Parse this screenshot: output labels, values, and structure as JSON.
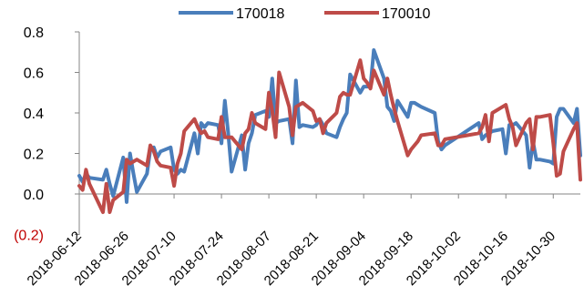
{
  "chart_data": {
    "type": "line",
    "title": "",
    "xlabel": "",
    "ylabel": "",
    "x_tick_labels": [
      "2018-06-12",
      "2018-06-26",
      "2018-07-10",
      "2018-07-24",
      "2018-08-07",
      "2018-08-21",
      "2018-09-04",
      "2018-09-18",
      "2018-10-02",
      "2018-10-16",
      "2018-10-30"
    ],
    "y_tick_labels": [
      "(0.2)",
      "0.0",
      "0.2",
      "0.4",
      "0.6",
      "0.8"
    ],
    "y_ticks": [
      -0.2,
      0.0,
      0.2,
      0.4,
      0.6,
      0.8
    ],
    "ylim": [
      -0.2,
      0.8
    ],
    "xlim": [
      "2018-06-12",
      "2018-11-07"
    ],
    "grid": false,
    "legend_position": "top",
    "series": [
      {
        "name": "170018",
        "color": "#4a7ebb",
        "points": [
          [
            "2018-06-12",
            0.09
          ],
          [
            "2018-06-13",
            0.06
          ],
          [
            "2018-06-14",
            0.1
          ],
          [
            "2018-06-15",
            0.08
          ],
          [
            "2018-06-19",
            0.07
          ],
          [
            "2018-06-20",
            0.12
          ],
          [
            "2018-06-21",
            0.05
          ],
          [
            "2018-06-22",
            -0.01
          ],
          [
            "2018-06-25",
            0.18
          ],
          [
            "2018-06-26",
            -0.04
          ],
          [
            "2018-06-27",
            0.2
          ],
          [
            "2018-06-28",
            0.1
          ],
          [
            "2018-06-29",
            0.01
          ],
          [
            "2018-07-02",
            0.1
          ],
          [
            "2018-07-03",
            0.22
          ],
          [
            "2018-07-04",
            0.23
          ],
          [
            "2018-07-05",
            0.18
          ],
          [
            "2018-07-06",
            0.21
          ],
          [
            "2018-07-09",
            0.23
          ],
          [
            "2018-07-10",
            0.12
          ],
          [
            "2018-07-11",
            0.1
          ],
          [
            "2018-07-12",
            0.12
          ],
          [
            "2018-07-13",
            0.11
          ],
          [
            "2018-07-16",
            0.3
          ],
          [
            "2018-07-17",
            0.2
          ],
          [
            "2018-07-18",
            0.35
          ],
          [
            "2018-07-19",
            0.33
          ],
          [
            "2018-07-20",
            0.35
          ],
          [
            "2018-07-23",
            0.34
          ],
          [
            "2018-07-24",
            0.25
          ],
          [
            "2018-07-25",
            0.46
          ],
          [
            "2018-07-26",
            0.3
          ],
          [
            "2018-07-27",
            0.11
          ],
          [
            "2018-07-30",
            0.29
          ],
          [
            "2018-07-31",
            0.12
          ],
          [
            "2018-08-01",
            0.25
          ],
          [
            "2018-08-02",
            0.3
          ],
          [
            "2018-08-03",
            0.39
          ],
          [
            "2018-08-06",
            0.41
          ],
          [
            "2018-08-07",
            0.38
          ],
          [
            "2018-08-08",
            0.57
          ],
          [
            "2018-08-09",
            0.35
          ],
          [
            "2018-08-10",
            0.36
          ],
          [
            "2018-08-13",
            0.37
          ],
          [
            "2018-08-14",
            0.25
          ],
          [
            "2018-08-15",
            0.56
          ],
          [
            "2018-08-16",
            0.33
          ],
          [
            "2018-08-17",
            0.34
          ],
          [
            "2018-08-20",
            0.33
          ],
          [
            "2018-08-21",
            0.34
          ],
          [
            "2018-08-22",
            0.37
          ],
          [
            "2018-08-23",
            0.34
          ],
          [
            "2018-08-24",
            0.3
          ],
          [
            "2018-08-27",
            0.28
          ],
          [
            "2018-08-28",
            0.33
          ],
          [
            "2018-08-29",
            0.37
          ],
          [
            "2018-08-30",
            0.4
          ],
          [
            "2018-08-31",
            0.59
          ],
          [
            "2018-09-03",
            0.5
          ],
          [
            "2018-09-04",
            0.53
          ],
          [
            "2018-09-05",
            0.53
          ],
          [
            "2018-09-06",
            0.53
          ],
          [
            "2018-09-07",
            0.71
          ],
          [
            "2018-09-10",
            0.57
          ],
          [
            "2018-09-11",
            0.43
          ],
          [
            "2018-09-12",
            0.41
          ],
          [
            "2018-09-13",
            0.36
          ],
          [
            "2018-09-14",
            0.46
          ],
          [
            "2018-09-17",
            0.38
          ],
          [
            "2018-09-18",
            0.45
          ],
          [
            "2018-09-19",
            0.45
          ],
          [
            "2018-09-20",
            0.44
          ],
          [
            "2018-09-21",
            0.43
          ],
          [
            "2018-09-25",
            0.4
          ],
          [
            "2018-09-26",
            0.26
          ],
          [
            "2018-09-27",
            0.22
          ],
          [
            "2018-09-28",
            0.24
          ],
          [
            "2018-10-08",
            0.35
          ],
          [
            "2018-10-09",
            0.27
          ],
          [
            "2018-10-10",
            0.29
          ],
          [
            "2018-10-11",
            0.3
          ],
          [
            "2018-10-12",
            0.31
          ],
          [
            "2018-10-15",
            0.32
          ],
          [
            "2018-10-16",
            0.2
          ],
          [
            "2018-10-17",
            0.34
          ],
          [
            "2018-10-18",
            0.34
          ],
          [
            "2018-10-19",
            0.35
          ],
          [
            "2018-10-22",
            0.29
          ],
          [
            "2018-10-23",
            0.13
          ],
          [
            "2018-10-24",
            0.26
          ],
          [
            "2018-10-25",
            0.17
          ],
          [
            "2018-10-26",
            0.17
          ],
          [
            "2018-10-29",
            0.16
          ],
          [
            "2018-10-30",
            0.15
          ],
          [
            "2018-10-31",
            0.38
          ],
          [
            "2018-11-01",
            0.42
          ],
          [
            "2018-11-02",
            0.42
          ],
          [
            "2018-11-05",
            0.35
          ],
          [
            "2018-11-06",
            0.42
          ],
          [
            "2018-11-07",
            0.19
          ]
        ]
      },
      {
        "name": "170010",
        "color": "#be4b48",
        "points": [
          [
            "2018-06-12",
            0.04
          ],
          [
            "2018-06-13",
            0.02
          ],
          [
            "2018-06-14",
            0.12
          ],
          [
            "2018-06-15",
            0.05
          ],
          [
            "2018-06-19",
            -0.09
          ],
          [
            "2018-06-20",
            0.05
          ],
          [
            "2018-06-21",
            -0.09
          ],
          [
            "2018-06-22",
            -0.03
          ],
          [
            "2018-06-25",
            0.01
          ],
          [
            "2018-06-26",
            0.17
          ],
          [
            "2018-06-27",
            0.15
          ],
          [
            "2018-06-28",
            0.16
          ],
          [
            "2018-06-29",
            0.17
          ],
          [
            "2018-07-02",
            0.14
          ],
          [
            "2018-07-03",
            0.24
          ],
          [
            "2018-07-04",
            0.21
          ],
          [
            "2018-07-05",
            0.16
          ],
          [
            "2018-07-06",
            0.14
          ],
          [
            "2018-07-09",
            0.13
          ],
          [
            "2018-07-10",
            0.04
          ],
          [
            "2018-07-11",
            0.15
          ],
          [
            "2018-07-12",
            0.2
          ],
          [
            "2018-07-13",
            0.31
          ],
          [
            "2018-07-16",
            0.37
          ],
          [
            "2018-07-17",
            0.33
          ],
          [
            "2018-07-18",
            0.3
          ],
          [
            "2018-07-19",
            0.31
          ],
          [
            "2018-07-20",
            0.28
          ],
          [
            "2018-07-23",
            0.27
          ],
          [
            "2018-07-24",
            0.38
          ],
          [
            "2018-07-25",
            0.28
          ],
          [
            "2018-07-26",
            0.28
          ],
          [
            "2018-07-27",
            0.28
          ],
          [
            "2018-07-30",
            0.22
          ],
          [
            "2018-07-31",
            0.3
          ],
          [
            "2018-08-01",
            0.32
          ],
          [
            "2018-08-02",
            0.4
          ],
          [
            "2018-08-03",
            0.35
          ],
          [
            "2018-08-06",
            0.32
          ],
          [
            "2018-08-07",
            0.5
          ],
          [
            "2018-08-08",
            0.41
          ],
          [
            "2018-08-09",
            0.28
          ],
          [
            "2018-08-10",
            0.6
          ],
          [
            "2018-08-13",
            0.43
          ],
          [
            "2018-08-14",
            0.29
          ],
          [
            "2018-08-15",
            0.43
          ],
          [
            "2018-08-16",
            0.44
          ],
          [
            "2018-08-17",
            0.45
          ],
          [
            "2018-08-20",
            0.41
          ],
          [
            "2018-08-21",
            0.36
          ],
          [
            "2018-08-22",
            0.37
          ],
          [
            "2018-08-23",
            0.3
          ],
          [
            "2018-08-24",
            0.35
          ],
          [
            "2018-08-27",
            0.4
          ],
          [
            "2018-08-28",
            0.48
          ],
          [
            "2018-08-29",
            0.5
          ],
          [
            "2018-08-30",
            0.49
          ],
          [
            "2018-08-31",
            0.49
          ],
          [
            "2018-09-03",
            0.66
          ],
          [
            "2018-09-04",
            0.57
          ],
          [
            "2018-09-05",
            0.55
          ],
          [
            "2018-09-06",
            0.52
          ],
          [
            "2018-09-07",
            0.61
          ],
          [
            "2018-09-10",
            0.49
          ],
          [
            "2018-09-11",
            0.57
          ],
          [
            "2018-09-12",
            0.49
          ],
          [
            "2018-09-13",
            0.42
          ],
          [
            "2018-09-14",
            0.36
          ],
          [
            "2018-09-17",
            0.19
          ],
          [
            "2018-09-18",
            0.22
          ],
          [
            "2018-09-19",
            0.24
          ],
          [
            "2018-09-20",
            0.26
          ],
          [
            "2018-09-21",
            0.29
          ],
          [
            "2018-09-25",
            0.3
          ],
          [
            "2018-09-26",
            0.24
          ],
          [
            "2018-09-27",
            0.24
          ],
          [
            "2018-09-28",
            0.27
          ],
          [
            "2018-10-08",
            0.3
          ],
          [
            "2018-10-09",
            0.33
          ],
          [
            "2018-10-10",
            0.39
          ],
          [
            "2018-10-11",
            0.26
          ],
          [
            "2018-10-12",
            0.4
          ],
          [
            "2018-10-15",
            0.43
          ],
          [
            "2018-10-16",
            0.44
          ],
          [
            "2018-10-17",
            0.37
          ],
          [
            "2018-10-18",
            0.33
          ],
          [
            "2018-10-19",
            0.24
          ],
          [
            "2018-10-22",
            0.35
          ],
          [
            "2018-10-23",
            0.37
          ],
          [
            "2018-10-24",
            0.22
          ],
          [
            "2018-10-25",
            0.38
          ],
          [
            "2018-10-26",
            0.38
          ],
          [
            "2018-10-29",
            0.39
          ],
          [
            "2018-10-30",
            0.25
          ],
          [
            "2018-10-31",
            0.09
          ],
          [
            "2018-11-01",
            0.1
          ],
          [
            "2018-11-02",
            0.21
          ],
          [
            "2018-11-05",
            0.32
          ],
          [
            "2018-11-06",
            0.35
          ],
          [
            "2018-11-07",
            0.07
          ]
        ]
      }
    ]
  }
}
